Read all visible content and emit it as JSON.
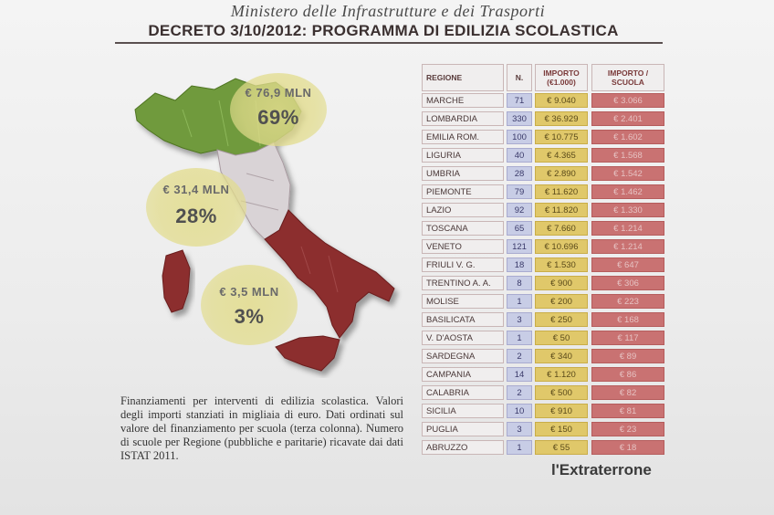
{
  "ministry_line": "Ministero delle Infrastrutture e dei Trasporti",
  "title": "DECRETO 3/10/2012: PROGRAMMA DI EDILIZIA SCOLASTICA",
  "bubbles": [
    {
      "amount": "€ 76,9 MLN",
      "percent": "69%"
    },
    {
      "amount": "€ 31,4 MLN",
      "percent": "28%"
    },
    {
      "amount": "€ 3,5 MLN",
      "percent": "3%"
    }
  ],
  "description": "Finanziamenti per interventi di edilizia scolastica. Valori degli importi stanziati in migliaia di euro. Dati ordinati sul valore del finanziamento per scuola (terza colonna). Numero di scuole per Regione (pubbliche e paritarie) ricavate dai dati ISTAT 2011.",
  "table": {
    "headers": {
      "region": "REGIONE",
      "n": "N.",
      "importo": "IMPORTO (€1.000)",
      "per_scuola": "IMPORTO / SCUOLA"
    },
    "rows": [
      {
        "region": "MARCHE",
        "n": "71",
        "importo": "€ 9.040",
        "per_scuola": "€ 3.066"
      },
      {
        "region": "LOMBARDIA",
        "n": "330",
        "importo": "€ 36.929",
        "per_scuola": "€ 2.401"
      },
      {
        "region": "EMILIA ROM.",
        "n": "100",
        "importo": "€ 10.775",
        "per_scuola": "€ 1.602"
      },
      {
        "region": "LIGURIA",
        "n": "40",
        "importo": "€ 4.365",
        "per_scuola": "€ 1.568"
      },
      {
        "region": "UMBRIA",
        "n": "28",
        "importo": "€ 2.890",
        "per_scuola": "€ 1.542"
      },
      {
        "region": "PIEMONTE",
        "n": "79",
        "importo": "€ 11.620",
        "per_scuola": "€ 1.462"
      },
      {
        "region": "LAZIO",
        "n": "92",
        "importo": "€ 11.820",
        "per_scuola": "€ 1.330"
      },
      {
        "region": "TOSCANA",
        "n": "65",
        "importo": "€ 7.660",
        "per_scuola": "€ 1.214"
      },
      {
        "region": "VENETO",
        "n": "121",
        "importo": "€ 10.696",
        "per_scuola": "€ 1.214"
      },
      {
        "region": "FRIULI V. G.",
        "n": "18",
        "importo": "€ 1.530",
        "per_scuola": "€ 647"
      },
      {
        "region": "TRENTINO A. A.",
        "n": "8",
        "importo": "€ 900",
        "per_scuola": "€ 306"
      },
      {
        "region": "MOLISE",
        "n": "1",
        "importo": "€ 200",
        "per_scuola": "€ 223"
      },
      {
        "region": "BASILICATA",
        "n": "3",
        "importo": "€ 250",
        "per_scuola": "€ 168"
      },
      {
        "region": "V. D'AOSTA",
        "n": "1",
        "importo": "€ 50",
        "per_scuola": "€ 117"
      },
      {
        "region": "SARDEGNA",
        "n": "2",
        "importo": "€ 340",
        "per_scuola": "€ 89"
      },
      {
        "region": "CAMPANIA",
        "n": "14",
        "importo": "€ 1.120",
        "per_scuola": "€ 86"
      },
      {
        "region": "CALABRIA",
        "n": "2",
        "importo": "€ 500",
        "per_scuola": "€ 82"
      },
      {
        "region": "SICILIA",
        "n": "10",
        "importo": "€ 910",
        "per_scuola": "€ 81"
      },
      {
        "region": "PUGLIA",
        "n": "3",
        "importo": "€ 150",
        "per_scuola": "€ 23"
      },
      {
        "region": "ABRUZZO",
        "n": "1",
        "importo": "€ 55",
        "per_scuola": "€ 18"
      }
    ]
  },
  "brand": "l'Extraterrone",
  "colors": {
    "north": "#6f9a3c",
    "center": "#d9d3d6",
    "south": "#8c2f2f",
    "bubble": "#e2dc8c"
  }
}
